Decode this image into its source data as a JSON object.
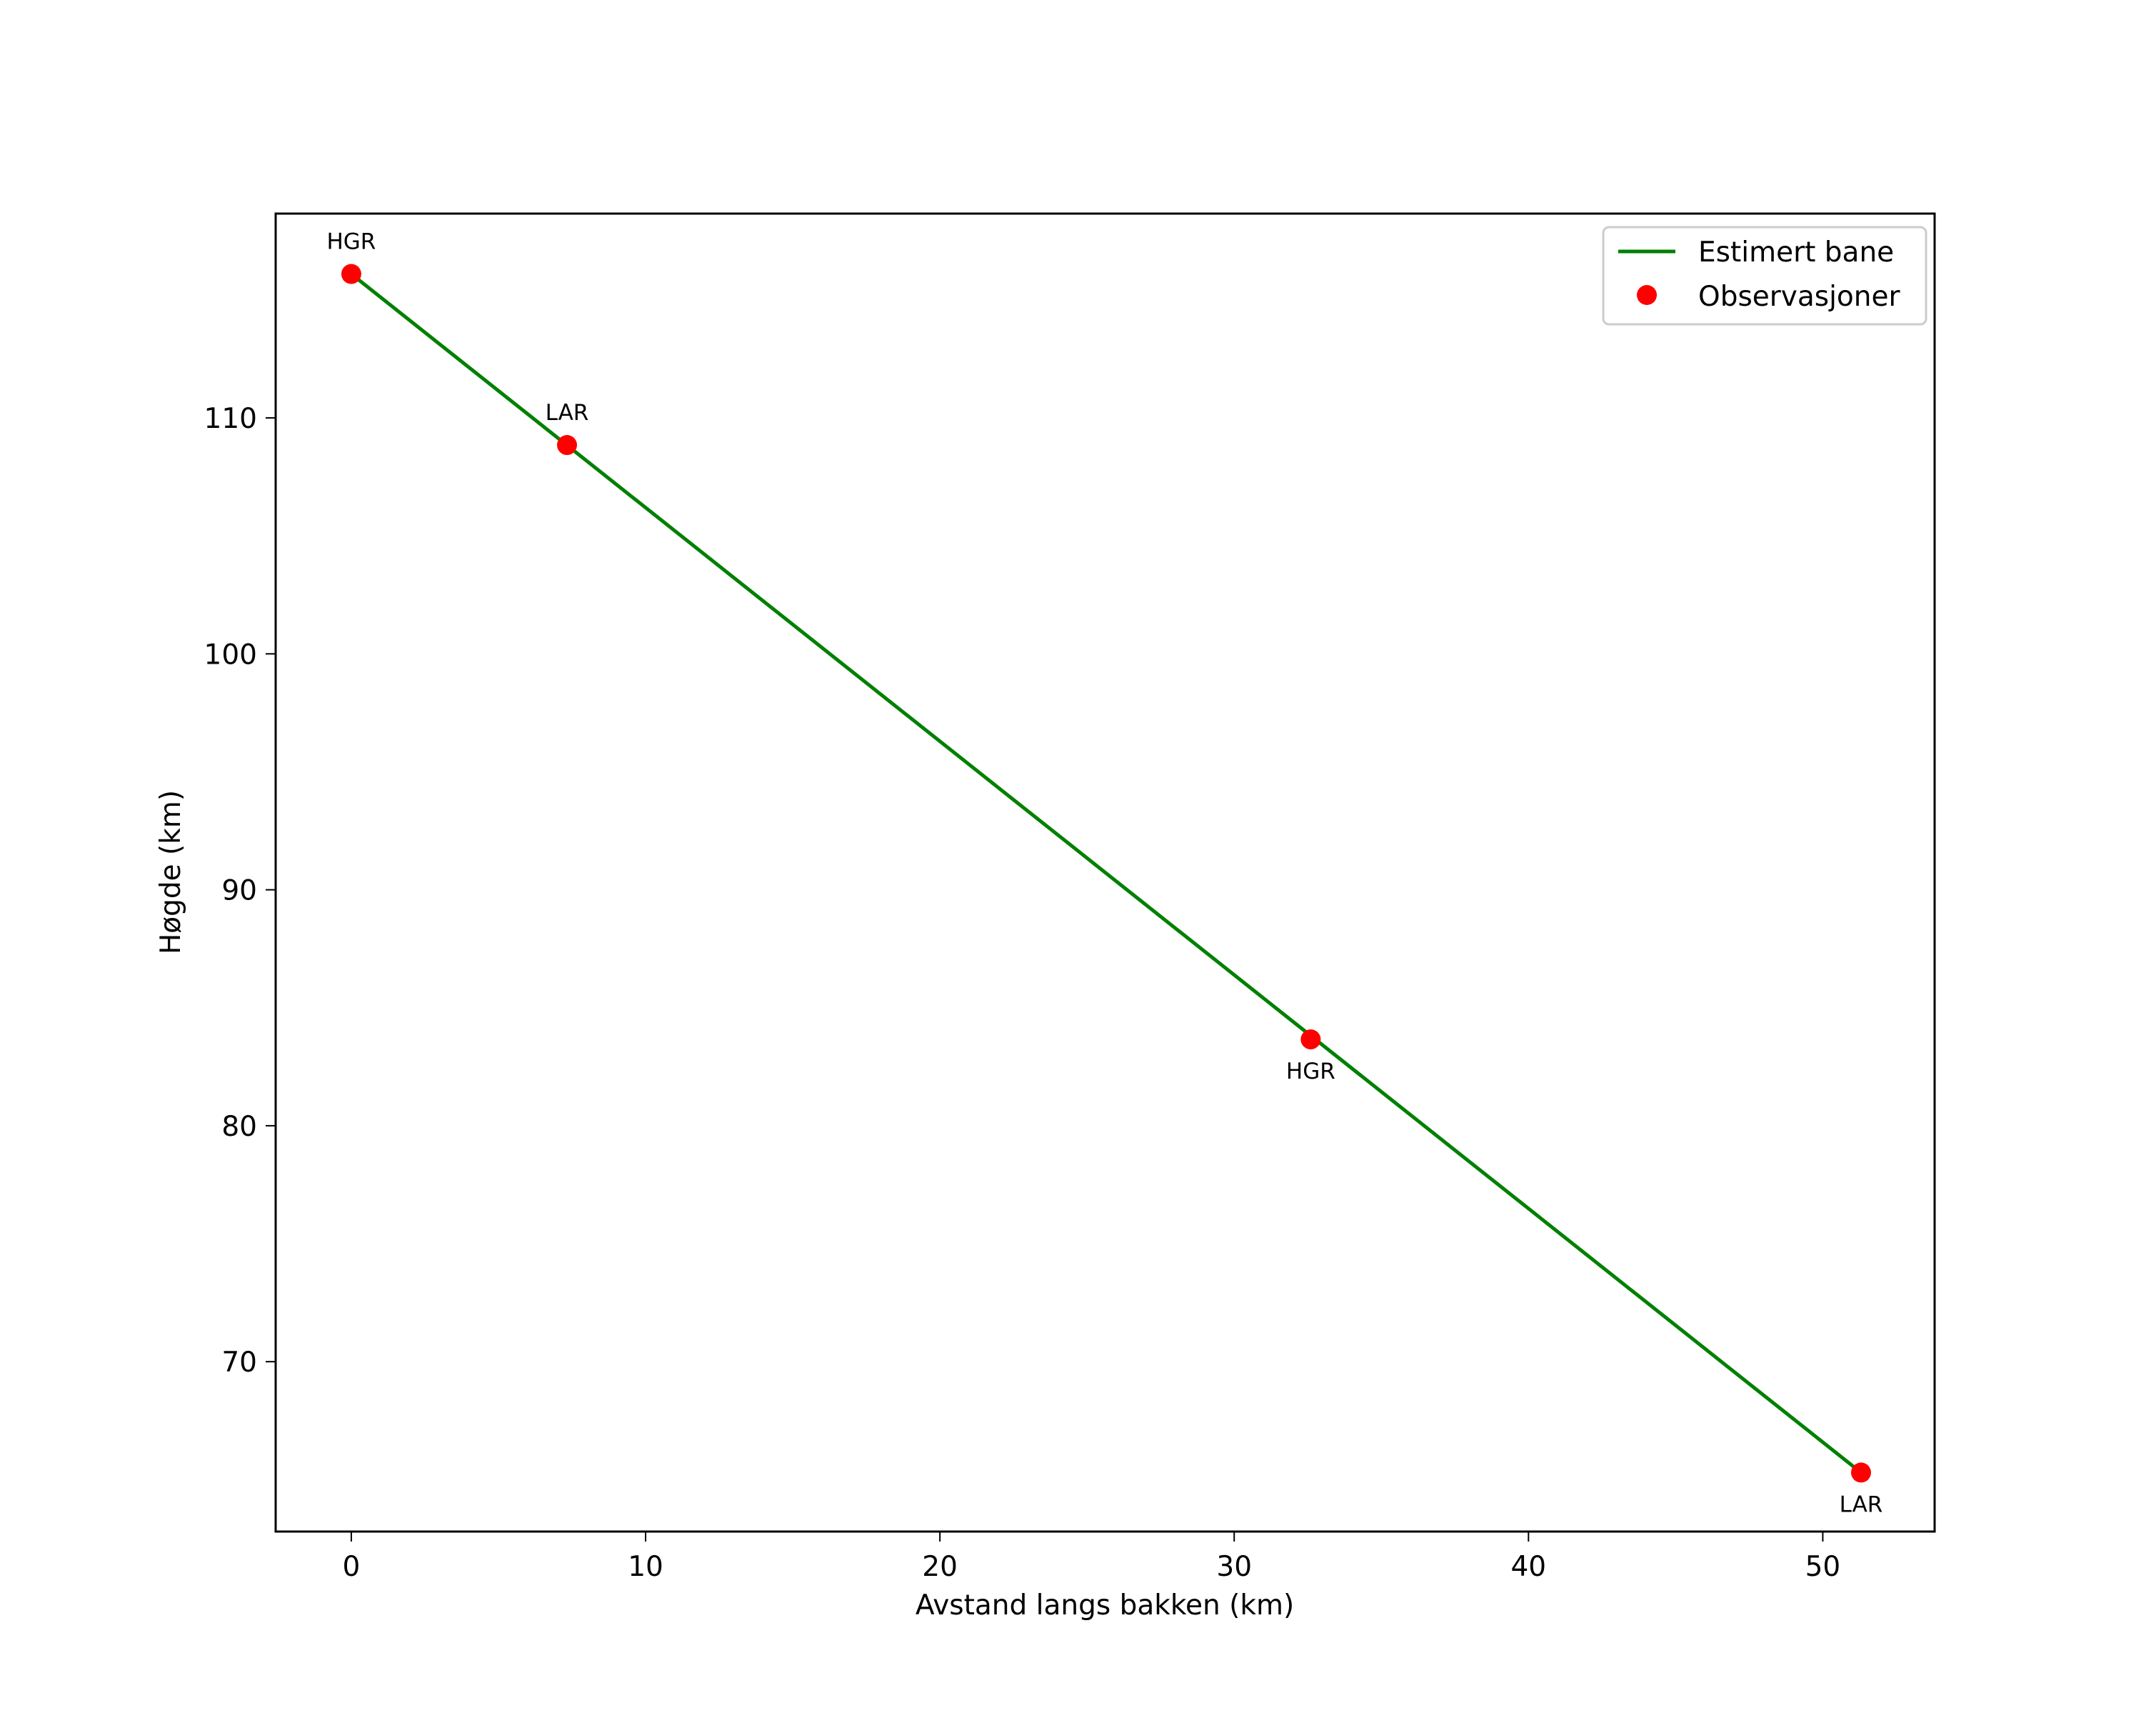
{
  "chart_data": {
    "type": "line",
    "title": "",
    "xlabel": "Avstand langs bakken (km)",
    "ylabel": "Høgde (km)",
    "xlim": [
      -2.57,
      53.8
    ],
    "ylim": [
      62.8,
      118.66
    ],
    "grid": false,
    "legend_position": "upper right",
    "x_ticks": [
      0,
      10,
      20,
      30,
      40,
      50
    ],
    "y_ticks": [
      70,
      80,
      90,
      100,
      110
    ],
    "series": [
      {
        "name": "Estimert bane",
        "kind": "line",
        "color": "#008000",
        "x": [
          0,
          51.3
        ],
        "y": [
          116.1,
          65.3
        ]
      },
      {
        "name": "Observasjoner",
        "kind": "scatter",
        "color": "#ff0000",
        "x": [
          0,
          7.33,
          32.6,
          51.3
        ],
        "y": [
          116.1,
          108.85,
          83.66,
          65.3
        ],
        "labels": [
          "HGR",
          "LAR",
          "HGR",
          "LAR"
        ],
        "label_positions": [
          "above",
          "above",
          "below",
          "below"
        ]
      }
    ]
  },
  "legend": {
    "items": [
      {
        "label": "Estimert bane",
        "symbol": "line",
        "color": "#008000"
      },
      {
        "label": "Observasjoner",
        "symbol": "dot",
        "color": "#ff0000"
      }
    ]
  }
}
